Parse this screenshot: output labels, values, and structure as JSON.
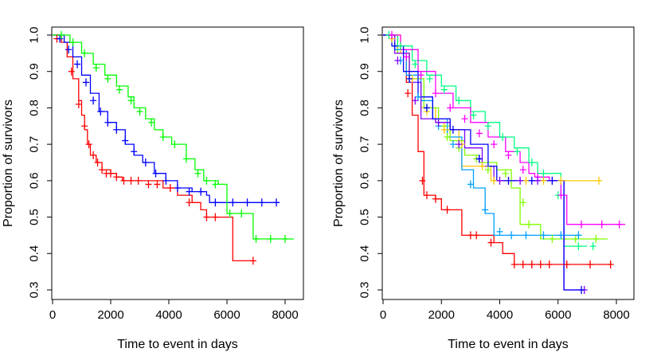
{
  "chart_data": [
    {
      "type": "line",
      "subtype": "kaplan-meier",
      "title": "",
      "xlabel": "Time to event in days",
      "ylabel": "Proportion of survivors",
      "xlim": [
        0,
        8500
      ],
      "ylim": [
        0.27,
        1.02
      ],
      "xticks": [
        0,
        2000,
        4000,
        6000,
        8000
      ],
      "xtick_labels": [
        "0",
        "2000",
        "4000",
        "6000",
        "8000"
      ],
      "yticks": [
        0.3,
        0.4,
        0.5,
        0.6,
        0.7,
        0.8,
        0.9,
        1.0
      ],
      "ytick_labels": [
        "0.3",
        "0.4",
        "0.5",
        "0.6",
        "0.7",
        "0.8",
        "0.9",
        "1.0"
      ],
      "grid": false,
      "series": [
        {
          "name": "red",
          "color": "#ff0000",
          "x": [
            0,
            300,
            500,
            700,
            900,
            1000,
            1100,
            1200,
            1300,
            1500,
            1700,
            2000,
            2200,
            2400,
            3000,
            3800,
            4300,
            4800,
            5100,
            5300,
            6100,
            6200,
            6900
          ],
          "y": [
            1.0,
            0.98,
            0.94,
            0.88,
            0.82,
            0.78,
            0.74,
            0.7,
            0.67,
            0.65,
            0.63,
            0.62,
            0.61,
            0.6,
            0.6,
            0.58,
            0.56,
            0.54,
            0.52,
            0.5,
            0.5,
            0.38,
            0.38
          ],
          "censor_x": [
            150,
            650,
            900,
            1100,
            1250,
            1400,
            1550,
            1700,
            1850,
            2000,
            2200,
            2450,
            2700,
            2950,
            3300,
            3600,
            4050,
            4700,
            5300,
            5600,
            6900
          ],
          "censor_y": [
            0.99,
            0.9,
            0.81,
            0.75,
            0.7,
            0.67,
            0.65,
            0.63,
            0.62,
            0.62,
            0.61,
            0.6,
            0.6,
            0.6,
            0.59,
            0.59,
            0.58,
            0.54,
            0.5,
            0.5,
            0.38
          ]
        },
        {
          "name": "blue",
          "color": "#0000ff",
          "x": [
            0,
            400,
            700,
            1000,
            1300,
            1600,
            1900,
            2200,
            2500,
            2800,
            3100,
            3500,
            3900,
            4300,
            4800,
            5300,
            5400,
            7800
          ],
          "y": [
            1.0,
            0.98,
            0.94,
            0.89,
            0.84,
            0.79,
            0.76,
            0.74,
            0.7,
            0.67,
            0.65,
            0.62,
            0.6,
            0.58,
            0.57,
            0.56,
            0.54,
            0.54
          ],
          "censor_x": [
            250,
            550,
            850,
            1150,
            1400,
            1650,
            1900,
            2200,
            2500,
            2800,
            3200,
            3550,
            3900,
            4300,
            4700,
            5100,
            5600,
            6200,
            6700,
            7200,
            7700
          ],
          "censor_y": [
            0.99,
            0.96,
            0.92,
            0.87,
            0.82,
            0.79,
            0.76,
            0.74,
            0.71,
            0.68,
            0.65,
            0.62,
            0.6,
            0.58,
            0.57,
            0.57,
            0.54,
            0.54,
            0.54,
            0.54,
            0.54
          ]
        },
        {
          "name": "green",
          "color": "#00ff00",
          "x": [
            0,
            600,
            1000,
            1400,
            1800,
            2200,
            2600,
            2800,
            3200,
            3500,
            3800,
            4100,
            4600,
            4900,
            5200,
            5700,
            6000,
            6800,
            6900,
            8300
          ],
          "y": [
            1.0,
            0.98,
            0.95,
            0.92,
            0.89,
            0.86,
            0.83,
            0.8,
            0.77,
            0.74,
            0.72,
            0.7,
            0.66,
            0.63,
            0.6,
            0.59,
            0.51,
            0.51,
            0.44,
            0.44
          ],
          "censor_x": [
            300,
            700,
            1100,
            1500,
            1900,
            2300,
            2700,
            3000,
            3400,
            3800,
            4200,
            4600,
            5000,
            5300,
            5600,
            6100,
            6500,
            7000,
            7500,
            8000
          ],
          "censor_y": [
            1.0,
            0.98,
            0.95,
            0.91,
            0.88,
            0.85,
            0.82,
            0.79,
            0.76,
            0.72,
            0.7,
            0.66,
            0.62,
            0.6,
            0.59,
            0.51,
            0.51,
            0.44,
            0.44,
            0.44
          ]
        }
      ]
    },
    {
      "type": "line",
      "subtype": "kaplan-meier",
      "title": "",
      "xlabel": "Time to event in days",
      "ylabel": "Proportion of survivors",
      "xlim": [
        0,
        8500
      ],
      "ylim": [
        0.27,
        1.02
      ],
      "xticks": [
        0,
        2000,
        4000,
        6000,
        8000
      ],
      "xtick_labels": [
        "0",
        "2000",
        "4000",
        "6000",
        "8000"
      ],
      "yticks": [
        0.3,
        0.4,
        0.5,
        0.6,
        0.7,
        0.8,
        0.9,
        1.0
      ],
      "ytick_labels": [
        "0.3",
        "0.4",
        "0.5",
        "0.6",
        "0.7",
        "0.8",
        "0.9",
        "1.0"
      ],
      "grid": false,
      "series": [
        {
          "name": "red",
          "color": "#ff0000",
          "x": [
            0,
            500,
            800,
            1000,
            1200,
            1400,
            1800,
            2000,
            2700,
            3000,
            3800,
            4100,
            4500,
            7800
          ],
          "y": [
            1.0,
            0.95,
            0.87,
            0.78,
            0.68,
            0.56,
            0.55,
            0.52,
            0.45,
            0.45,
            0.43,
            0.4,
            0.37,
            0.37
          ],
          "censor_x": [
            850,
            1350,
            1500,
            1800,
            2200,
            3000,
            3200,
            3700,
            4500,
            4800,
            5100,
            5400,
            5700,
            6300,
            7100,
            7800
          ],
          "censor_y": [
            0.84,
            0.6,
            0.56,
            0.55,
            0.52,
            0.45,
            0.45,
            0.43,
            0.37,
            0.37,
            0.37,
            0.37,
            0.37,
            0.37,
            0.37,
            0.37
          ]
        },
        {
          "name": "orange",
          "color": "#ffc800",
          "x": [
            0,
            600,
            900,
            1300,
            1800,
            2100,
            2600,
            2700,
            3700,
            7500
          ],
          "y": [
            1.0,
            0.95,
            0.88,
            0.8,
            0.76,
            0.74,
            0.7,
            0.64,
            0.6,
            0.6
          ],
          "censor_x": [
            300,
            1000,
            1500,
            2100,
            2700,
            3400,
            3800,
            4300,
            4900,
            5500,
            6100,
            7400
          ],
          "censor_y": [
            0.99,
            0.88,
            0.79,
            0.74,
            0.7,
            0.64,
            0.6,
            0.6,
            0.6,
            0.6,
            0.6,
            0.6
          ]
        },
        {
          "name": "yellow-green",
          "color": "#80ff00",
          "x": [
            0,
            500,
            900,
            1400,
            1900,
            2300,
            2800,
            3300,
            3900,
            4400,
            4700,
            5400,
            7700
          ],
          "y": [
            1.0,
            0.95,
            0.88,
            0.8,
            0.75,
            0.71,
            0.67,
            0.65,
            0.63,
            0.58,
            0.48,
            0.44,
            0.44
          ],
          "censor_x": [
            400,
            900,
            1500,
            2200,
            2600,
            3200,
            3600,
            4200,
            4800,
            5000,
            5800,
            6600,
            7300
          ],
          "censor_y": [
            0.97,
            0.88,
            0.8,
            0.72,
            0.69,
            0.66,
            0.63,
            0.62,
            0.54,
            0.48,
            0.44,
            0.44,
            0.44
          ]
        },
        {
          "name": "deep-sky-blue",
          "color": "#00a0ff",
          "x": [
            0,
            400,
            800,
            1300,
            1700,
            2200,
            2700,
            3100,
            3500,
            3800,
            4100,
            6800
          ],
          "y": [
            1.0,
            0.96,
            0.89,
            0.82,
            0.77,
            0.72,
            0.63,
            0.58,
            0.51,
            0.45,
            0.45,
            0.45
          ],
          "censor_x": [
            600,
            1200,
            1900,
            2400,
            3000,
            3500,
            4000,
            4400,
            4900,
            5500,
            6100,
            6700
          ],
          "censor_y": [
            0.93,
            0.83,
            0.75,
            0.7,
            0.59,
            0.52,
            0.46,
            0.45,
            0.45,
            0.45,
            0.45,
            0.45
          ]
        },
        {
          "name": "spring-green",
          "color": "#00ff80",
          "x": [
            0,
            500,
            1000,
            1500,
            2000,
            2500,
            3000,
            3500,
            4000,
            4500,
            5000,
            5300,
            6100,
            6200,
            7000
          ],
          "y": [
            1.0,
            0.97,
            0.93,
            0.89,
            0.86,
            0.82,
            0.79,
            0.76,
            0.72,
            0.69,
            0.65,
            0.62,
            0.56,
            0.42,
            0.42
          ],
          "censor_x": [
            200,
            600,
            1100,
            1600,
            2100,
            2600,
            3100,
            3600,
            4100,
            4600,
            5100,
            5500,
            6000,
            6700,
            7200
          ],
          "censor_y": [
            1.0,
            0.97,
            0.92,
            0.88,
            0.85,
            0.82,
            0.78,
            0.75,
            0.72,
            0.68,
            0.65,
            0.62,
            0.56,
            0.42,
            0.42
          ]
        },
        {
          "name": "magenta",
          "color": "#ff00ff",
          "x": [
            0,
            600,
            1200,
            1800,
            2400,
            3000,
            3600,
            4200,
            4700,
            5000,
            5200,
            5700,
            6100,
            6300,
            8300
          ],
          "y": [
            1.0,
            0.96,
            0.9,
            0.84,
            0.8,
            0.76,
            0.72,
            0.68,
            0.65,
            0.62,
            0.61,
            0.6,
            0.56,
            0.48,
            0.48
          ],
          "censor_x": [
            300,
            800,
            1300,
            1800,
            2300,
            2800,
            3300,
            3800,
            4300,
            4800,
            5300,
            5800,
            6100,
            6800,
            7500,
            8100
          ],
          "censor_y": [
            1.0,
            0.94,
            0.89,
            0.84,
            0.8,
            0.77,
            0.73,
            0.7,
            0.67,
            0.63,
            0.61,
            0.6,
            0.56,
            0.48,
            0.48,
            0.48
          ]
        },
        {
          "name": "purple",
          "color": "#8000ff",
          "x": [
            0,
            400,
            900,
            1300,
            1800,
            2300,
            2800,
            3400,
            3800,
            6100,
            6200,
            6900
          ],
          "y": [
            1.0,
            0.95,
            0.87,
            0.77,
            0.76,
            0.74,
            0.69,
            0.64,
            0.6,
            0.6,
            0.3,
            0.3
          ],
          "censor_x": [
            500,
            1100,
            1900,
            2600,
            3300,
            4000,
            4700,
            5300,
            6900
          ],
          "censor_y": [
            0.93,
            0.82,
            0.76,
            0.7,
            0.66,
            0.6,
            0.6,
            0.6,
            0.3
          ]
        },
        {
          "name": "blue",
          "color": "#0000ff",
          "x": [
            0,
            300,
            700,
            1200,
            1700,
            2300,
            3000,
            3600,
            3900,
            6100,
            6200,
            6900
          ],
          "y": [
            1.0,
            0.97,
            0.9,
            0.83,
            0.77,
            0.74,
            0.7,
            0.64,
            0.6,
            0.6,
            0.3,
            0.3
          ],
          "censor_x": [
            400,
            900,
            1500,
            2400,
            3300,
            4300,
            5100,
            5800,
            6800
          ],
          "censor_y": [
            0.97,
            0.88,
            0.8,
            0.74,
            0.66,
            0.6,
            0.6,
            0.6,
            0.3
          ]
        }
      ]
    }
  ]
}
